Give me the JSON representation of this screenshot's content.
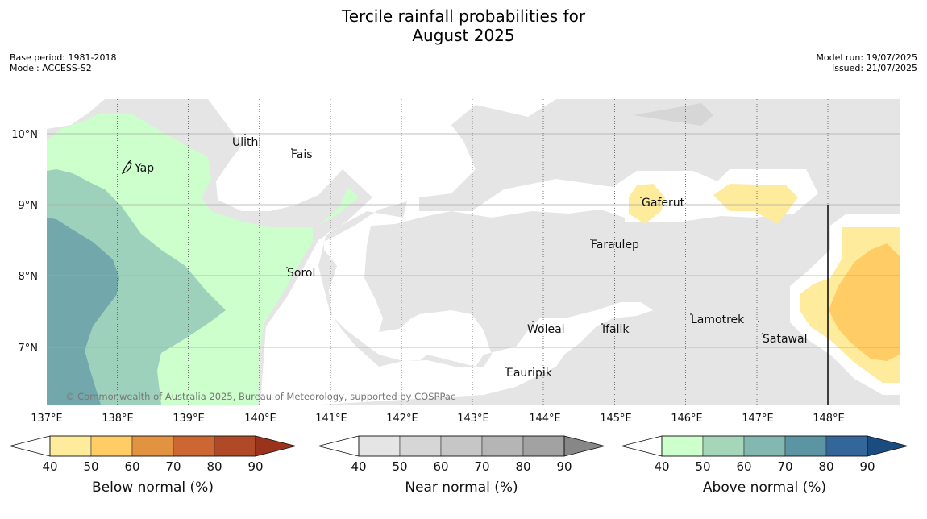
{
  "header": {
    "title_line1": "Tercile rainfall probabilities for",
    "title_line2": "August 2025",
    "base_period": "Base period: 1981-2018",
    "model": "Model: ACCESS-S2",
    "model_run": "Model run: 19/07/2025",
    "issued": "Issued: 21/07/2025"
  },
  "map": {
    "lat_labels": [
      "10°N",
      "9°N",
      "8°N",
      "7°N"
    ],
    "lon_labels": [
      "137°E",
      "138°E",
      "139°E",
      "140°E",
      "141°E",
      "142°E",
      "143°E",
      "144°E",
      "145°E",
      "146°E",
      "147°E",
      "148°E"
    ],
    "places": [
      "Ulithi",
      "Fais",
      "Yap",
      "Gaferut",
      "Faraulep",
      "Sorol",
      "Lamotrek",
      "Woleai",
      "Ifalik",
      "Satawal",
      "Eauripik"
    ],
    "copyright": "© Commonwealth of Australia 2025, Bureau of Meteorology, supported by COSPPac",
    "colors": {
      "near_normal_shade": "#e5e5e5",
      "below_light": "#ffeb9c",
      "below_mid": "#ffcc66",
      "above_light": "#ccffcc",
      "above_mid": "#9ed1bb",
      "above_dark": "#72a8ab"
    }
  },
  "colorbars": [
    {
      "label": "Below normal (%)",
      "ticks": [
        "40",
        "50",
        "60",
        "70",
        "80",
        "90"
      ],
      "colors": [
        "#ffffff",
        "#ffeb9c",
        "#ffcc66",
        "#e2933f",
        "#cc6633",
        "#b04a26",
        "#99331c"
      ]
    },
    {
      "label": "Near normal (%)",
      "ticks": [
        "40",
        "50",
        "60",
        "70",
        "80",
        "90"
      ],
      "colors": [
        "#ffffff",
        "#e5e5e5",
        "#d6d6d6",
        "#c6c6c6",
        "#b5b5b5",
        "#a2a2a2",
        "#878787"
      ]
    },
    {
      "label": "Above normal (%)",
      "ticks": [
        "40",
        "50",
        "60",
        "70",
        "80",
        "90"
      ],
      "colors": [
        "#ffffff",
        "#ccffcc",
        "#a6d6b9",
        "#82b8af",
        "#5b94a2",
        "#336699",
        "#1a4c80"
      ]
    }
  ]
}
